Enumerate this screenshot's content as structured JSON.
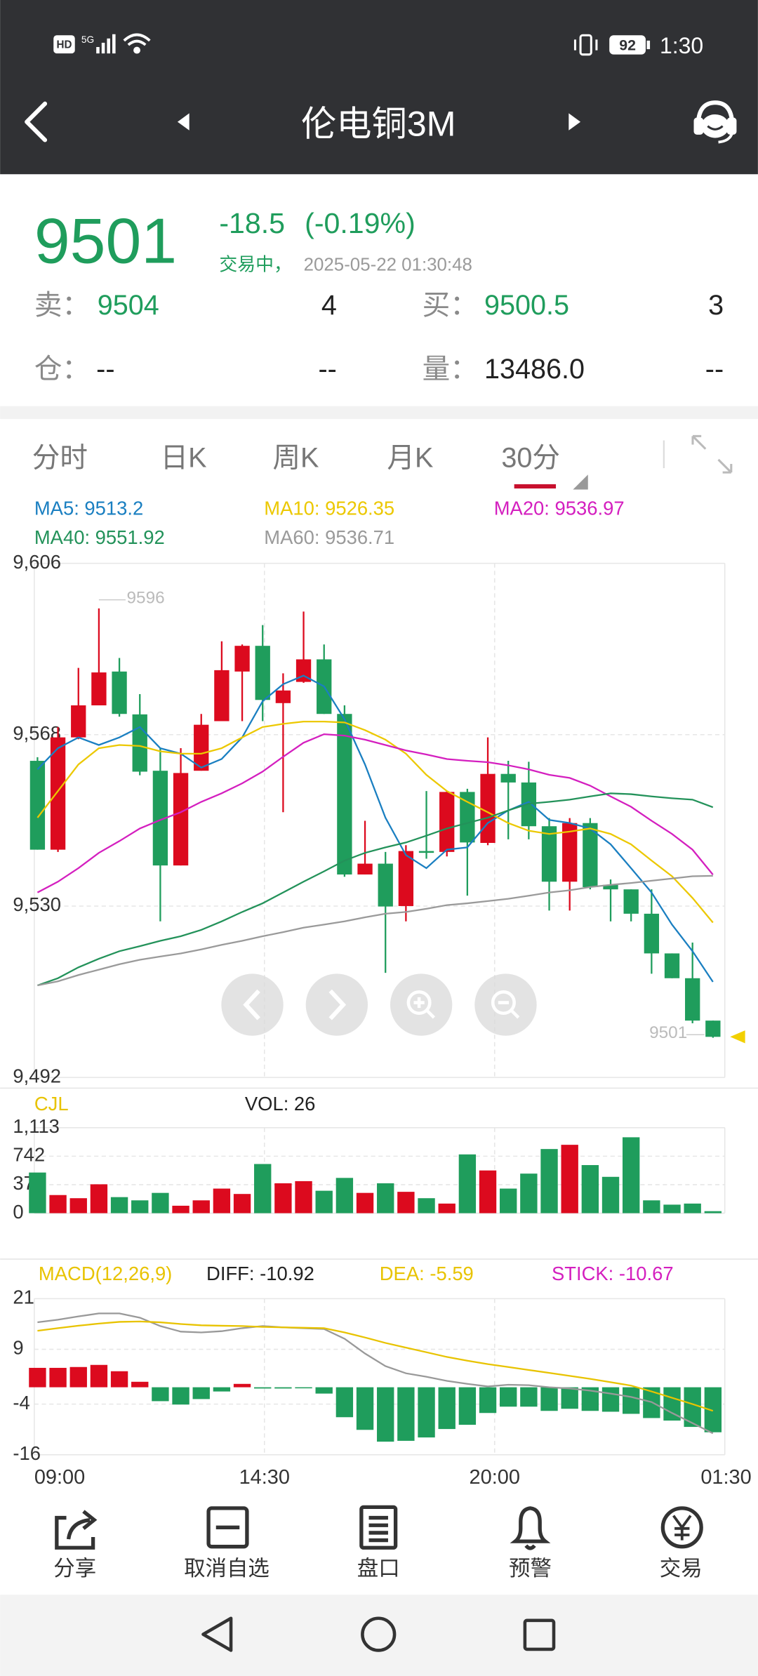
{
  "status_bar": {
    "hd": "HD",
    "network": "5G",
    "battery": "92",
    "time": "1:30"
  },
  "header": {
    "title": "伦电铜3M"
  },
  "quote": {
    "price": "9501",
    "change": "-18.5",
    "change_pct": "(-0.19%)",
    "status": "交易中，",
    "datetime": "2025-05-22 01:30:48",
    "sell": {
      "label": "卖：",
      "price": "9504",
      "volume": "4"
    },
    "buy": {
      "label": "买：",
      "price": "9500.5",
      "volume": "3"
    },
    "position": {
      "label": "仓：",
      "value": "--",
      "change": "--"
    },
    "volume": {
      "label": "量：",
      "value": "13486.0",
      "change": "--"
    }
  },
  "tabs": [
    "分时",
    "日K",
    "周K",
    "月K",
    "30分"
  ],
  "chart_data": [
    {
      "type": "candlestick",
      "up_color": "#dc0a1e",
      "down_color": "#1f9d5c",
      "ylim": [
        9492,
        9606
      ],
      "yticks": [
        {
          "value": 9606,
          "label": "9,606"
        },
        {
          "value": 9568,
          "label": "9,568"
        },
        {
          "value": 9530,
          "label": "9,530"
        },
        {
          "value": 9492,
          "label": "9,492"
        }
      ],
      "grid": true,
      "high_label": "9596",
      "last_label": "9501",
      "open": [
        9562.2,
        9542.5,
        9567.4,
        9574.5,
        9582.0,
        9572.5,
        9560.0,
        9539.0,
        9560.0,
        9571.0,
        9582.0,
        9587.7,
        9575.0,
        9579.7,
        9584.7,
        9572.6,
        9537.0,
        9539.4,
        9530.0,
        9542.2,
        9542.0,
        9555.3,
        9544.0,
        9559.3,
        9557.4,
        9547.7,
        9535.4,
        9548.4,
        9534.7,
        9533.7,
        9528.3,
        9519.5,
        9514.0,
        9504.6
      ],
      "high": [
        9563.0,
        9569.7,
        9582.8,
        9596.0,
        9585.0,
        9577.0,
        9565.0,
        9565.0,
        9572.6,
        9588.7,
        9588.0,
        9592.3,
        9581.6,
        9595.3,
        9588.0,
        9574.5,
        9548.9,
        9542.0,
        9543.5,
        9555.5,
        9555.5,
        9556.0,
        9567.4,
        9562.2,
        9562.0,
        9549.5,
        9549.5,
        9549.5,
        9535.9,
        9533.7,
        9533.7,
        9519.5,
        9521.9,
        9504.6
      ],
      "low": [
        9542.5,
        9542.0,
        9567.0,
        9574.5,
        9572.0,
        9559.0,
        9526.6,
        9539.0,
        9560.0,
        9571.0,
        9571.0,
        9571.0,
        9550.8,
        9579.5,
        9572.6,
        9536.5,
        9537.0,
        9515.2,
        9526.6,
        9540.5,
        9541.0,
        9532.3,
        9543.5,
        9544.8,
        9544.8,
        9529.0,
        9529.0,
        9533.7,
        9526.6,
        9526.6,
        9515.0,
        9514.0,
        9504.0,
        9500.8
      ],
      "close": [
        9542.5,
        9567.4,
        9574.5,
        9581.8,
        9572.6,
        9559.8,
        9539.0,
        9559.5,
        9570.2,
        9582.3,
        9587.7,
        9575.7,
        9577.8,
        9584.7,
        9572.6,
        9537.0,
        9539.4,
        9529.9,
        9542.2,
        9541.8,
        9555.3,
        9544.1,
        9559.3,
        9557.4,
        9547.7,
        9535.4,
        9548.4,
        9534.2,
        9533.7,
        9528.3,
        9519.5,
        9514.0,
        9504.6,
        9501.0
      ],
      "series": [
        {
          "name": "MA5",
          "legend": "MA5: 9513.2",
          "color": "#1a7fc1",
          "values": [
            9560.3,
            9565.0,
            9567.4,
            9565.7,
            9567.4,
            9569.7,
            9565.0,
            9563.8,
            9560.7,
            9562.6,
            9567.4,
            9575.4,
            9579.2,
            9581.1,
            9578.7,
            9571.4,
            9561.4,
            9549.6,
            9541.3,
            9538.4,
            9542.5,
            9543.0,
            9548.4,
            9551.2,
            9553.1,
            9549.1,
            9548.4,
            9547.2,
            9543.7,
            9538.4,
            9533.0,
            9525.9,
            9520.0,
            9513.2
          ]
        },
        {
          "name": "MA10",
          "legend": "MA10: 9526.35",
          "color": "#ecc800",
          "values": [
            9549.6,
            9555.5,
            9561.4,
            9565.0,
            9565.7,
            9565.5,
            9564.3,
            9563.8,
            9563.8,
            9565.0,
            9567.4,
            9569.7,
            9570.4,
            9570.9,
            9570.9,
            9570.7,
            9569.0,
            9566.9,
            9563.8,
            9559.1,
            9555.5,
            9553.1,
            9550.8,
            9548.4,
            9546.7,
            9546.0,
            9546.5,
            9547.2,
            9546.0,
            9543.7,
            9540.1,
            9536.6,
            9531.8,
            9526.35
          ]
        },
        {
          "name": "MA20",
          "legend": "MA20: 9536.97",
          "color": "#d41fbf",
          "values": [
            9533.0,
            9535.4,
            9538.4,
            9541.8,
            9544.4,
            9547.2,
            9549.1,
            9550.8,
            9553.1,
            9555.0,
            9557.2,
            9559.8,
            9563.1,
            9566.2,
            9568.1,
            9567.8,
            9566.9,
            9565.7,
            9564.5,
            9563.6,
            9562.6,
            9562.2,
            9561.9,
            9561.2,
            9560.3,
            9559.1,
            9558.4,
            9556.7,
            9554.3,
            9552.0,
            9548.9,
            9546.0,
            9542.5,
            9536.97
          ]
        },
        {
          "name": "MA40",
          "legend": "MA40: 9551.92",
          "color": "#23925a",
          "values": [
            9512.4,
            9514.0,
            9516.4,
            9518.3,
            9520.0,
            9521.1,
            9522.3,
            9523.3,
            9524.7,
            9526.6,
            9528.7,
            9530.6,
            9533.0,
            9535.4,
            9537.7,
            9540.1,
            9541.8,
            9543.0,
            9544.1,
            9545.6,
            9547.2,
            9548.4,
            9549.6,
            9551.2,
            9552.7,
            9553.1,
            9553.6,
            9554.3,
            9555.0,
            9554.8,
            9554.3,
            9553.9,
            9553.6,
            9551.92
          ]
        },
        {
          "name": "MA60",
          "legend": "MA60: 9536.71",
          "color": "#9a9a9a",
          "values": [
            9512.4,
            9513.3,
            9514.7,
            9515.9,
            9517.1,
            9518.1,
            9518.8,
            9519.5,
            9520.4,
            9521.4,
            9522.3,
            9523.3,
            9524.2,
            9525.2,
            9525.9,
            9526.6,
            9527.5,
            9528.3,
            9528.7,
            9529.4,
            9530.2,
            9530.6,
            9531.1,
            9531.6,
            9532.3,
            9533.0,
            9533.5,
            9534.2,
            9534.7,
            9535.1,
            9535.6,
            9536.1,
            9536.6,
            9536.71
          ]
        }
      ]
    },
    {
      "type": "volume",
      "title": "CJL",
      "legend": "VOL: 26",
      "up_color": "#dc0a1e",
      "down_color": "#1f9d5c",
      "ylim": [
        0,
        1113
      ],
      "yticks": [
        {
          "value": 1113,
          "label": "1,113"
        },
        742,
        371,
        0
      ],
      "values": [
        529,
        236,
        195,
        376,
        209,
        167,
        264,
        97,
        167,
        320,
        250,
        640,
        389,
        417,
        292,
        459,
        264,
        389,
        278,
        195,
        125,
        765,
        556,
        320,
        515,
        835,
        890,
        626,
        473,
        988,
        167,
        111,
        125,
        26
      ]
    },
    {
      "type": "macd",
      "title": "MACD(12,26,9)",
      "up_color": "#dc0a1e",
      "down_color": "#1f9d5c",
      "ylim": [
        -16,
        21
      ],
      "yticks": [
        21,
        9,
        -4,
        -16
      ],
      "xticks": [
        "09:00",
        "14:30",
        "20:00",
        "01:30"
      ],
      "series": [
        {
          "name": "DIFF",
          "legend": "DIFF: -10.92",
          "color": "#999999",
          "values": [
            15.4,
            16.0,
            16.8,
            17.5,
            17.5,
            16.5,
            14.5,
            13.2,
            13.0,
            13.3,
            14.0,
            14.5,
            14.2,
            14.0,
            13.8,
            11.5,
            8.0,
            5.0,
            3.3,
            2.5,
            1.5,
            0.8,
            0.2,
            0.6,
            0.5,
            0.0,
            -0.3,
            -0.8,
            -1.5,
            -2.3,
            -3.5,
            -6.1,
            -8.5,
            -10.92
          ]
        },
        {
          "name": "DEA",
          "legend": "DEA: -5.59",
          "color": "#e8c300",
          "values": [
            13.4,
            14.0,
            14.6,
            15.1,
            15.5,
            15.6,
            15.4,
            15.0,
            14.7,
            14.6,
            14.5,
            14.3,
            14.2,
            14.1,
            14.0,
            13.0,
            11.8,
            10.5,
            9.4,
            8.3,
            7.2,
            6.3,
            5.5,
            4.8,
            4.1,
            3.4,
            2.7,
            2.0,
            1.2,
            0.4,
            -1.0,
            -2.5,
            -4.0,
            -5.59
          ]
        },
        {
          "name": "STICK",
          "legend": "STICK: -10.67",
          "color": "#d41fbf",
          "values": [
            4.6,
            4.6,
            4.8,
            5.3,
            3.8,
            1.3,
            -3.3,
            -4.1,
            -2.8,
            -1.0,
            0.8,
            -0.3,
            -0.3,
            -0.1,
            -1.5,
            -7.1,
            -10.1,
            -12.9,
            -12.7,
            -11.9,
            -9.9,
            -8.9,
            -6.1,
            -4.6,
            -4.6,
            -5.6,
            -5.1,
            -5.6,
            -5.8,
            -6.3,
            -7.3,
            -7.9,
            -9.4,
            -10.67
          ]
        }
      ]
    }
  ],
  "toolbar": [
    "分享",
    "取消自选",
    "盘口",
    "预警",
    "交易"
  ]
}
